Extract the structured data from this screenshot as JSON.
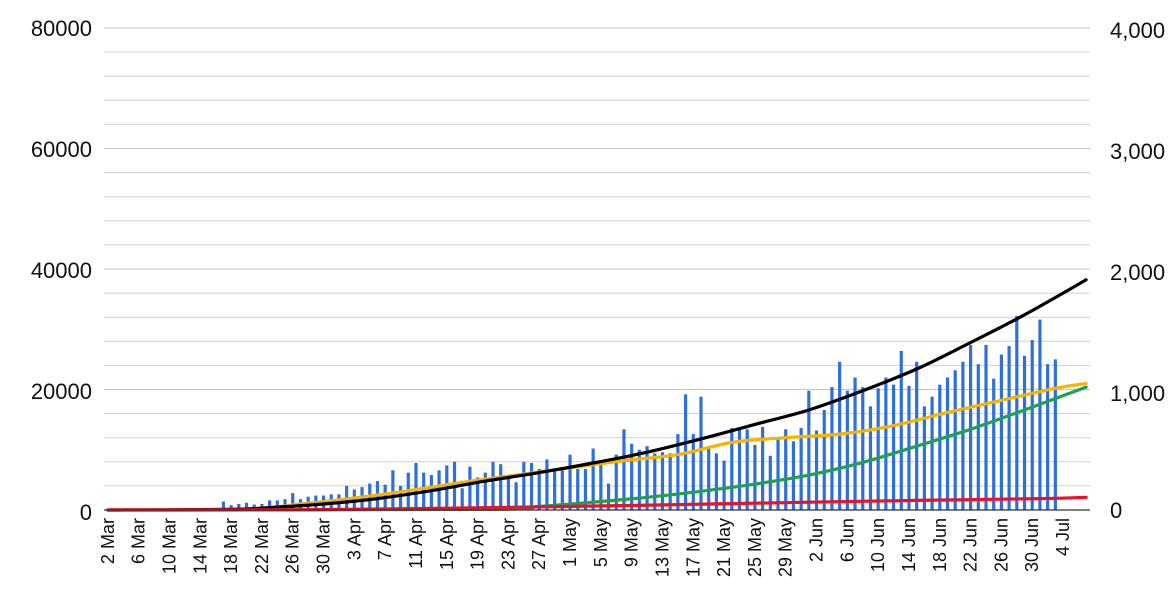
{
  "chart_data": {
    "type": "bar",
    "title": "",
    "xlabel": "",
    "ylabel": "",
    "y_left_ticks": [
      "80000",
      "60000",
      "40000",
      "20000",
      "0"
    ],
    "y_right_ticks": [
      "4,000",
      "3,000",
      "2,000",
      "1,000",
      "0"
    ],
    "ylim_left": [
      0,
      80000
    ],
    "ylim_right": [
      0,
      4000
    ],
    "grid": true,
    "legend": "none",
    "x_tick_labels": [
      "2 Mar",
      "6 Mar",
      "10 Mar",
      "14 Mar",
      "18 Mar",
      "22 Mar",
      "26 Mar",
      "30 Mar",
      "3 Apr",
      "7 Apr",
      "11 Apr",
      "15 Apr",
      "19 Apr",
      "23 Apr",
      "27 Apr",
      "1 May",
      "5 May",
      "9 May",
      "13 May",
      "17 May",
      "21 May",
      "25 May",
      "29 May",
      "2 Jun",
      "6 Jun",
      "10 Jun",
      "14 Jun",
      "18 Jun",
      "22 Jun",
      "26 Jun",
      "30 Jun",
      "4 Jul"
    ],
    "x_range": [
      "2 Mar",
      "7 Jul"
    ],
    "colors": {
      "bars": "#2f6fd8",
      "black": "#000000",
      "yellow": "#f4b400",
      "green": "#20a050",
      "red": "#e8132b",
      "grid": "#d0d0d0"
    },
    "series": [
      {
        "axis": "right",
        "type": "bar",
        "color": "#2f6fd8",
        "start_date": "17 Mar",
        "values": [
          70,
          40,
          50,
          60,
          45,
          50,
          80,
          80,
          90,
          140,
          90,
          110,
          120,
          120,
          130,
          130,
          200,
          170,
          190,
          220,
          240,
          210,
          330,
          200,
          310,
          390,
          310,
          290,
          330,
          370,
          400,
          180,
          360,
          270,
          310,
          400,
          380,
          270,
          230,
          400,
          390,
          340,
          420,
          340,
          330,
          460,
          340,
          340,
          510,
          380,
          220,
          460,
          670,
          550,
          500,
          530,
          470,
          480,
          470,
          630,
          960,
          630,
          940,
          520,
          470,
          410,
          680,
          680,
          670,
          540,
          690,
          450,
          600,
          670,
          570,
          680,
          990,
          660,
          830,
          1020,
          1230,
          990,
          1100,
          1020,
          860,
          1010,
          1100,
          1040,
          1320,
          1030,
          1230,
          860,
          940,
          1040,
          1100,
          1160,
          1230,
          1370,
          1210,
          1370,
          1090,
          1290,
          1360,
          1610,
          1280,
          1410,
          1580,
          1210,
          1250
        ]
      },
      {
        "axis": "right",
        "type": "line",
        "color": "#000000",
        "points": [
          [
            "2 Mar",
            0
          ],
          [
            "18 Mar",
            5
          ],
          [
            "23 Mar",
            20
          ],
          [
            "30 Mar",
            50
          ],
          [
            "6 Apr",
            95
          ],
          [
            "13 Apr",
            160
          ],
          [
            "20 Apr",
            240
          ],
          [
            "27 Apr",
            310
          ],
          [
            "4 May",
            390
          ],
          [
            "11 May",
            480
          ],
          [
            "18 May",
            590
          ],
          [
            "25 May",
            710
          ],
          [
            "1 Jun",
            830
          ],
          [
            "8 Jun",
            990
          ],
          [
            "15 Jun",
            1170
          ],
          [
            "22 Jun",
            1390
          ],
          [
            "29 Jun",
            1620
          ],
          [
            "7 Jul",
            1910
          ]
        ]
      },
      {
        "axis": "right",
        "type": "line",
        "color": "#f4b400",
        "points": [
          [
            "2 Mar",
            0
          ],
          [
            "20 Mar",
            10
          ],
          [
            "27 Mar",
            50
          ],
          [
            "3 Apr",
            100
          ],
          [
            "10 Apr",
            160
          ],
          [
            "17 Apr",
            230
          ],
          [
            "24 Apr",
            290
          ],
          [
            "1 May",
            350
          ],
          [
            "8 May",
            410
          ],
          [
            "15 May",
            460
          ],
          [
            "22 May",
            560
          ],
          [
            "29 May",
            600
          ],
          [
            "5 Jun",
            630
          ],
          [
            "12 Jun",
            700
          ],
          [
            "19 Jun",
            810
          ],
          [
            "26 Jun",
            910
          ],
          [
            "3 Jul",
            1010
          ],
          [
            "7 Jul",
            1050
          ]
        ]
      },
      {
        "axis": "right",
        "type": "line",
        "color": "#20a050",
        "points": [
          [
            "2 Mar",
            0
          ],
          [
            "20 Apr",
            5
          ],
          [
            "27 Apr",
            30
          ],
          [
            "4 May",
            65
          ],
          [
            "11 May",
            105
          ],
          [
            "18 May",
            155
          ],
          [
            "25 May",
            215
          ],
          [
            "1 Jun",
            290
          ],
          [
            "8 Jun",
            395
          ],
          [
            "15 Jun",
            530
          ],
          [
            "22 Jun",
            670
          ],
          [
            "29 Jun",
            830
          ],
          [
            "7 Jul",
            1020
          ]
        ]
      },
      {
        "axis": "right",
        "type": "line",
        "color": "#e8132b",
        "points": [
          [
            "2 Mar",
            0
          ],
          [
            "20 Mar",
            1
          ],
          [
            "1 Apr",
            5
          ],
          [
            "15 Apr",
            15
          ],
          [
            "1 May",
            30
          ],
          [
            "15 May",
            45
          ],
          [
            "1 Jun",
            65
          ],
          [
            "15 Jun",
            80
          ],
          [
            "1 Jul",
            95
          ],
          [
            "7 Jul",
            105
          ]
        ]
      }
    ]
  }
}
